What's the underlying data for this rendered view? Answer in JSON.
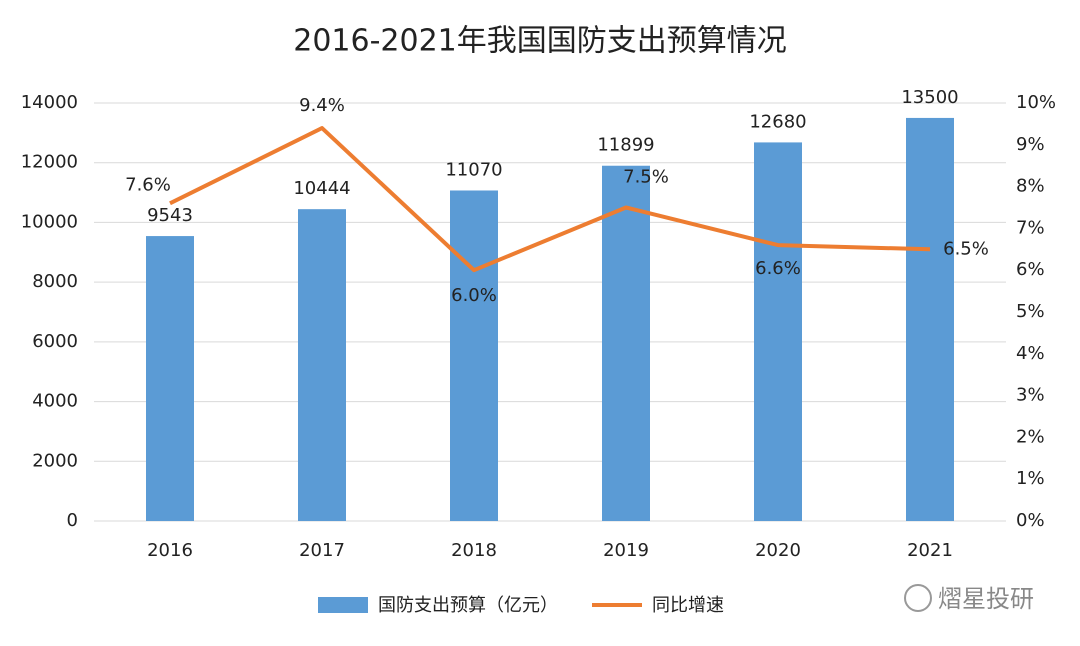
{
  "chart_data": {
    "type": "bar",
    "title": "2016-2021年我国国防支出预算情况",
    "categories": [
      "2016",
      "2017",
      "2018",
      "2019",
      "2020",
      "2021"
    ],
    "series": [
      {
        "name": "国防支出预算（亿元）",
        "type": "bar",
        "color": "#5b9bd5",
        "values": [
          9543,
          10444,
          11070,
          11899,
          12680,
          13500
        ]
      },
      {
        "name": "同比增速",
        "type": "line",
        "axis": "y2",
        "color": "#ed7d31",
        "values": [
          7.6,
          9.4,
          6.0,
          7.5,
          6.6,
          6.5
        ],
        "value_labels": [
          "7.6%",
          "9.4%",
          "6.0%",
          "7.5%",
          "6.6%",
          "6.5%"
        ]
      }
    ],
    "ylim": [
      0,
      14000
    ],
    "yticks": [
      0,
      2000,
      4000,
      6000,
      8000,
      10000,
      12000,
      14000
    ],
    "y2lim": [
      0,
      10
    ],
    "y2ticks": [
      {
        "value": 0,
        "label": "0%"
      },
      {
        "value": 1,
        "label": "1%"
      },
      {
        "value": 2,
        "label": "2%"
      },
      {
        "value": 3,
        "label": "3%"
      },
      {
        "value": 4,
        "label": "4%"
      },
      {
        "value": 5,
        "label": "5%"
      },
      {
        "value": 6,
        "label": "6%"
      },
      {
        "value": 7,
        "label": "7%"
      },
      {
        "value": 8,
        "label": "8%"
      },
      {
        "value": 9,
        "label": "9%"
      },
      {
        "value": 10,
        "label": "10%"
      }
    ],
    "grid": true,
    "legend": "bottom",
    "watermark": "熠星投研"
  }
}
